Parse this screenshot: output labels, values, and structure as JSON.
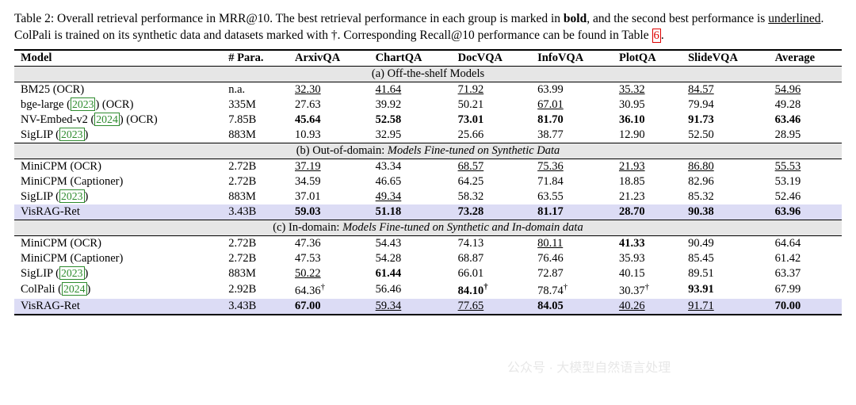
{
  "caption": {
    "prefix": "Table 2: Overall retrieval performance in MRR@10. The best retrieval performance in each group is marked in ",
    "bold_word": "bold",
    "mid1": ", and the second best performance is ",
    "underlined_word": "underlined",
    "mid2": ". ColPali is trained on its synthetic data and datasets marked with †. Corresponding Recall@10 performance can be found in Table ",
    "ref": "6",
    "suffix": "."
  },
  "columns": [
    "Model",
    "# Para.",
    "ArxivQA",
    "ChartQA",
    "DocVQA",
    "InfoVQA",
    "PlotQA",
    "SlideVQA",
    "Average"
  ],
  "sections": [
    {
      "label_a": "(a) Off-the-shelf Models",
      "label_b": "",
      "rows": [
        {
          "model": {
            "pre": "BM25 (OCR)",
            "cite": "",
            "post": ""
          },
          "para": "n.a.",
          "cells": [
            {
              "v": "32.30",
              "s": "u"
            },
            {
              "v": "41.64",
              "s": "u"
            },
            {
              "v": "71.92",
              "s": "u"
            },
            {
              "v": "63.99",
              "s": ""
            },
            {
              "v": "35.32",
              "s": "u"
            },
            {
              "v": "84.57",
              "s": "u"
            },
            {
              "v": "54.96",
              "s": "u"
            }
          ]
        },
        {
          "model": {
            "pre": "bge-large (",
            "cite": "2023",
            "post": ") (OCR)"
          },
          "para": "335M",
          "cells": [
            {
              "v": "27.63",
              "s": ""
            },
            {
              "v": "39.92",
              "s": ""
            },
            {
              "v": "50.21",
              "s": ""
            },
            {
              "v": "67.01",
              "s": "u"
            },
            {
              "v": "30.95",
              "s": ""
            },
            {
              "v": "79.94",
              "s": ""
            },
            {
              "v": "49.28",
              "s": ""
            }
          ]
        },
        {
          "model": {
            "pre": "NV-Embed-v2 (",
            "cite": "2024",
            "post": ") (OCR)"
          },
          "para": "7.85B",
          "cells": [
            {
              "v": "45.64",
              "s": "b"
            },
            {
              "v": "52.58",
              "s": "b"
            },
            {
              "v": "73.01",
              "s": "b"
            },
            {
              "v": "81.70",
              "s": "b"
            },
            {
              "v": "36.10",
              "s": "b"
            },
            {
              "v": "91.73",
              "s": "b"
            },
            {
              "v": "63.46",
              "s": "b"
            }
          ]
        },
        {
          "model": {
            "pre": "SigLIP (",
            "cite": "2023",
            "post": ")"
          },
          "para": "883M",
          "cells": [
            {
              "v": "10.93",
              "s": ""
            },
            {
              "v": "32.95",
              "s": ""
            },
            {
              "v": "25.66",
              "s": ""
            },
            {
              "v": "38.77",
              "s": ""
            },
            {
              "v": "12.90",
              "s": ""
            },
            {
              "v": "52.50",
              "s": ""
            },
            {
              "v": "28.95",
              "s": ""
            }
          ]
        }
      ]
    },
    {
      "label_a": "(b) Out-of-domain: ",
      "label_b": "Models Fine-tuned on Synthetic Data",
      "rows": [
        {
          "model": {
            "pre": "MiniCPM (OCR)",
            "cite": "",
            "post": ""
          },
          "para": "2.72B",
          "cells": [
            {
              "v": "37.19",
              "s": "u"
            },
            {
              "v": "43.34",
              "s": ""
            },
            {
              "v": "68.57",
              "s": "u"
            },
            {
              "v": "75.36",
              "s": "u"
            },
            {
              "v": "21.93",
              "s": "u"
            },
            {
              "v": "86.80",
              "s": "u"
            },
            {
              "v": "55.53",
              "s": "u"
            }
          ]
        },
        {
          "model": {
            "pre": "MiniCPM (Captioner)",
            "cite": "",
            "post": ""
          },
          "para": "2.72B",
          "cells": [
            {
              "v": "34.59",
              "s": ""
            },
            {
              "v": "46.65",
              "s": ""
            },
            {
              "v": "64.25",
              "s": ""
            },
            {
              "v": "71.84",
              "s": ""
            },
            {
              "v": "18.85",
              "s": ""
            },
            {
              "v": "82.96",
              "s": ""
            },
            {
              "v": "53.19",
              "s": ""
            }
          ]
        },
        {
          "model": {
            "pre": "SigLIP (",
            "cite": "2023",
            "post": ")"
          },
          "para": "883M",
          "cells": [
            {
              "v": "37.01",
              "s": ""
            },
            {
              "v": "49.34",
              "s": "u"
            },
            {
              "v": "58.32",
              "s": ""
            },
            {
              "v": "63.55",
              "s": ""
            },
            {
              "v": "21.23",
              "s": ""
            },
            {
              "v": "85.32",
              "s": ""
            },
            {
              "v": "52.46",
              "s": ""
            }
          ]
        },
        {
          "hl": true,
          "model": {
            "pre": "VisRAG-Ret",
            "cite": "",
            "post": ""
          },
          "para": "3.43B",
          "cells": [
            {
              "v": "59.03",
              "s": "b"
            },
            {
              "v": "51.18",
              "s": "b"
            },
            {
              "v": "73.28",
              "s": "b"
            },
            {
              "v": "81.17",
              "s": "b"
            },
            {
              "v": "28.70",
              "s": "b"
            },
            {
              "v": "90.38",
              "s": "b"
            },
            {
              "v": "63.96",
              "s": "b"
            }
          ]
        }
      ]
    },
    {
      "label_a": "(c) In-domain: ",
      "label_b": "Models Fine-tuned on Synthetic and In-domain data",
      "rows": [
        {
          "model": {
            "pre": "MiniCPM (OCR)",
            "cite": "",
            "post": ""
          },
          "para": "2.72B",
          "cells": [
            {
              "v": "47.36",
              "s": ""
            },
            {
              "v": "54.43",
              "s": ""
            },
            {
              "v": "74.13",
              "s": ""
            },
            {
              "v": "80.11",
              "s": "u"
            },
            {
              "v": "41.33",
              "s": "b"
            },
            {
              "v": "90.49",
              "s": ""
            },
            {
              "v": "64.64",
              "s": ""
            }
          ]
        },
        {
          "model": {
            "pre": "MiniCPM (Captioner)",
            "cite": "",
            "post": ""
          },
          "para": "2.72B",
          "cells": [
            {
              "v": "47.53",
              "s": ""
            },
            {
              "v": "54.28",
              "s": ""
            },
            {
              "v": "68.87",
              "s": ""
            },
            {
              "v": "76.46",
              "s": ""
            },
            {
              "v": "35.93",
              "s": ""
            },
            {
              "v": "85.45",
              "s": ""
            },
            {
              "v": "61.42",
              "s": ""
            }
          ]
        },
        {
          "model": {
            "pre": "SigLIP (",
            "cite": "2023",
            "post": ")"
          },
          "para": "883M",
          "cells": [
            {
              "v": "50.22",
              "s": "u"
            },
            {
              "v": "61.44",
              "s": "b"
            },
            {
              "v": "66.01",
              "s": ""
            },
            {
              "v": "72.87",
              "s": ""
            },
            {
              "v": "40.15",
              "s": ""
            },
            {
              "v": "89.51",
              "s": ""
            },
            {
              "v": "63.37",
              "s": ""
            }
          ]
        },
        {
          "model": {
            "pre": "ColPali (",
            "cite": "2024",
            "post": ")"
          },
          "para": "2.92B",
          "cells": [
            {
              "v": "64.36",
              "s": "",
              "sup": "†"
            },
            {
              "v": "56.46",
              "s": ""
            },
            {
              "v": "84.10",
              "s": "b",
              "sup": "†"
            },
            {
              "v": "78.74",
              "s": "",
              "sup": "†"
            },
            {
              "v": "30.37",
              "s": "",
              "sup": "†"
            },
            {
              "v": "93.91",
              "s": "b"
            },
            {
              "v": "67.99",
              "s": ""
            }
          ]
        },
        {
          "hl": true,
          "last": true,
          "model": {
            "pre": "VisRAG-Ret",
            "cite": "",
            "post": ""
          },
          "para": "3.43B",
          "cells": [
            {
              "v": "67.00",
              "s": "b"
            },
            {
              "v": "59.34",
              "s": "u"
            },
            {
              "v": "77.65",
              "s": "u"
            },
            {
              "v": "84.05",
              "s": "b"
            },
            {
              "v": "40.26",
              "s": "u"
            },
            {
              "v": "91.71",
              "s": "u"
            },
            {
              "v": "70.00",
              "s": "b"
            }
          ]
        }
      ]
    }
  ],
  "watermark": "公众号 · 大模型自然语言处理"
}
